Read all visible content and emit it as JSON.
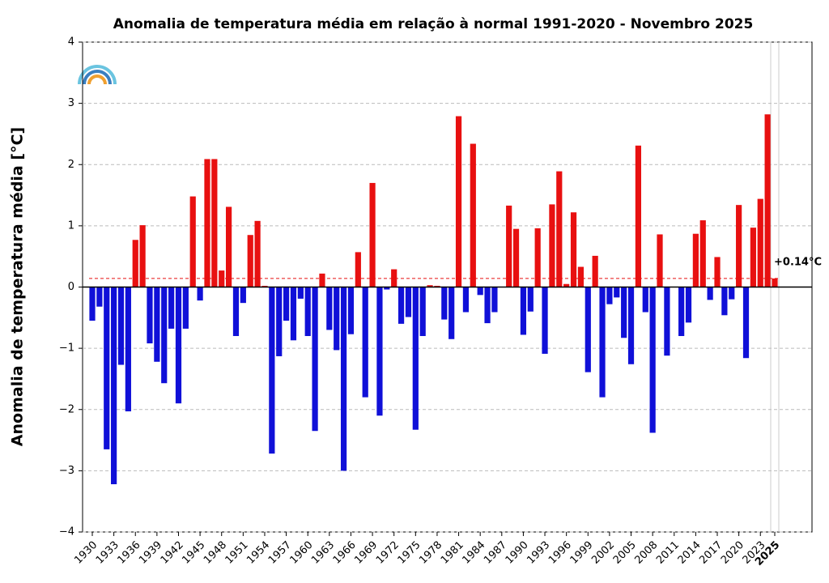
{
  "chart_data": {
    "type": "bar",
    "title": "Anomalia de temperatura média em relação à normal 1991-2020 - Novembro 2025",
    "y_label": "Anomalia de temperatura média [°C]",
    "categories": [
      "1930",
      null,
      null,
      "1933",
      null,
      null,
      "1936",
      null,
      null,
      "1939",
      null,
      null,
      "1942",
      null,
      null,
      "1945",
      null,
      null,
      "1948",
      null,
      null,
      "1951",
      null,
      null,
      "1954",
      null,
      null,
      "1957",
      null,
      null,
      "1960",
      null,
      null,
      "1963",
      null,
      null,
      "1966",
      null,
      null,
      "1969",
      null,
      null,
      "1972",
      null,
      null,
      "1975",
      null,
      null,
      "1978",
      null,
      null,
      "1981",
      null,
      null,
      "1984",
      null,
      null,
      "1987",
      null,
      null,
      "1990",
      null,
      null,
      "1993",
      null,
      null,
      "1996",
      null,
      null,
      "1999",
      null,
      null,
      "2002",
      null,
      null,
      "2005",
      null,
      null,
      "2008",
      null,
      null,
      "2011",
      null,
      null,
      "2014",
      null,
      null,
      "2017",
      null,
      null,
      "2020",
      null,
      null,
      "2023",
      null,
      "2025"
    ],
    "values": [
      -0.55,
      -0.32,
      -2.65,
      -3.22,
      -1.27,
      -2.03,
      0.77,
      1.01,
      -0.92,
      -1.22,
      -1.57,
      -0.68,
      -1.9,
      -0.68,
      1.48,
      -0.22,
      2.09,
      2.09,
      0.27,
      1.31,
      -0.8,
      -0.26,
      0.85,
      1.08,
      0.02,
      -2.72,
      -1.13,
      -0.55,
      -0.87,
      -0.19,
      -0.8,
      -2.35,
      0.22,
      -0.7,
      -1.03,
      -3.0,
      -0.77,
      0.57,
      -1.8,
      1.7,
      -2.1,
      -0.04,
      0.29,
      -0.6,
      -0.49,
      -2.33,
      -0.8,
      0.03,
      0.02,
      -0.53,
      -0.85,
      2.79,
      -0.41,
      2.34,
      -0.13,
      -0.59,
      -0.41,
      0.0,
      1.33,
      0.95,
      -0.78,
      -0.4,
      0.96,
      -1.09,
      1.35,
      1.89,
      0.05,
      1.22,
      0.33,
      -1.39,
      0.51,
      -1.8,
      -0.28,
      -0.17,
      -0.83,
      -1.26,
      2.31,
      -0.41,
      -2.38,
      0.86,
      -1.12,
      0.0,
      -0.8,
      -0.58,
      0.87,
      1.09,
      -0.21,
      0.49,
      -0.46,
      -0.2,
      1.34,
      -1.16,
      0.97,
      1.44,
      2.82,
      0.14
    ],
    "positive_color": "#e81010",
    "negative_color": "#1010d8",
    "ylim": [
      -4,
      4
    ],
    "yticks": [
      {
        "value": -4,
        "label": "−4"
      },
      {
        "value": -3,
        "label": "−3"
      },
      {
        "value": -2,
        "label": "−2"
      },
      {
        "value": -1,
        "label": "−1"
      },
      0,
      1,
      2,
      3,
      4
    ],
    "grid": true,
    "reference_line": {
      "value": 0.14,
      "label": "+0.14°C",
      "color": "#e81010"
    }
  }
}
